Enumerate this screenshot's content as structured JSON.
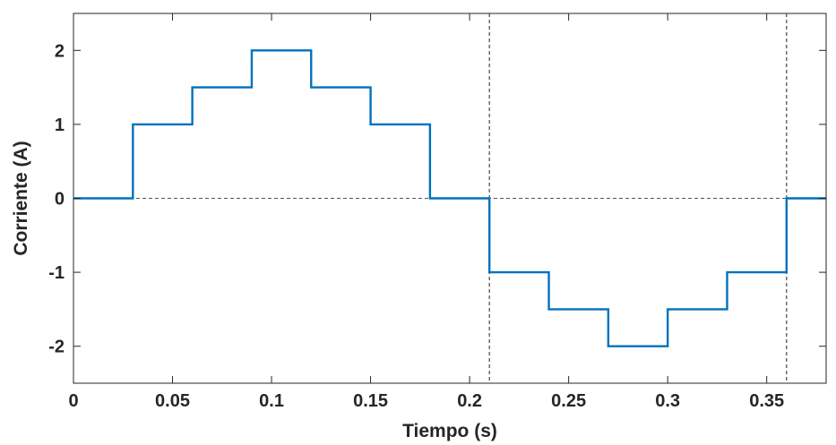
{
  "chart_data": {
    "type": "line",
    "title": "",
    "xlabel": "Tiempo (s)",
    "ylabel": "Corriente (A)",
    "xlim": [
      0,
      0.38
    ],
    "ylim": [
      -2.5,
      2.5
    ],
    "xticks": [
      0,
      0.05,
      0.1,
      0.15,
      0.2,
      0.25,
      0.3,
      0.35
    ],
    "xtick_labels": [
      "0",
      "0.05",
      "0.1",
      "0.15",
      "0.2",
      "0.25",
      "0.3",
      "0.35"
    ],
    "yticks": [
      -2,
      -1,
      0,
      1,
      2
    ],
    "ytick_labels": [
      "-2",
      "-1",
      "0",
      "1",
      "2"
    ],
    "grid": false,
    "legend": "none",
    "series": [
      {
        "style": "step",
        "color": "#0072BD",
        "x": [
          0,
          0.03,
          0.03,
          0.06,
          0.06,
          0.09,
          0.09,
          0.12,
          0.12,
          0.15,
          0.15,
          0.18,
          0.18,
          0.21,
          0.21,
          0.24,
          0.24,
          0.27,
          0.27,
          0.3,
          0.3,
          0.33,
          0.33,
          0.36,
          0.36,
          0.38
        ],
        "y": [
          0,
          0,
          1,
          1,
          1.5,
          1.5,
          2,
          2,
          1.5,
          1.5,
          1,
          1,
          0,
          0,
          -1,
          -1,
          -1.5,
          -1.5,
          -2,
          -2,
          -1.5,
          -1.5,
          -1,
          -1,
          0,
          0
        ]
      }
    ],
    "reference_lines": {
      "horizontal": [
        0
      ],
      "vertical": [
        0.21,
        0.36
      ],
      "color": "#555555",
      "style": "dashed"
    }
  }
}
